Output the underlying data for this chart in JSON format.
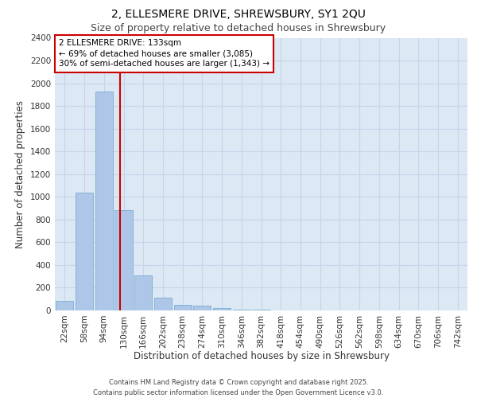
{
  "title_line1": "2, ELLESMERE DRIVE, SHREWSBURY, SY1 2QU",
  "title_line2": "Size of property relative to detached houses in Shrewsbury",
  "xlabel": "Distribution of detached houses by size in Shrewsbury",
  "ylabel": "Number of detached properties",
  "categories": [
    "22sqm",
    "58sqm",
    "94sqm",
    "130sqm",
    "166sqm",
    "202sqm",
    "238sqm",
    "274sqm",
    "310sqm",
    "346sqm",
    "382sqm",
    "418sqm",
    "454sqm",
    "490sqm",
    "526sqm",
    "562sqm",
    "598sqm",
    "634sqm",
    "670sqm",
    "706sqm",
    "742sqm"
  ],
  "values": [
    85,
    1035,
    1930,
    880,
    310,
    110,
    52,
    42,
    20,
    10,
    10,
    0,
    0,
    0,
    0,
    0,
    0,
    0,
    0,
    0,
    0
  ],
  "bar_color": "#aec6e8",
  "bar_edge_color": "#7aaed0",
  "property_line_x": 2.833,
  "annotation_text": "2 ELLESMERE DRIVE: 133sqm\n← 69% of detached houses are smaller (3,085)\n30% of semi-detached houses are larger (1,343) →",
  "annotation_box_facecolor": "#ffffff",
  "annotation_box_edgecolor": "#cc0000",
  "line_color": "#cc0000",
  "ylim": [
    0,
    2400
  ],
  "yticks": [
    0,
    200,
    400,
    600,
    800,
    1000,
    1200,
    1400,
    1600,
    1800,
    2000,
    2200,
    2400
  ],
  "grid_color": "#c8d4e8",
  "background_color": "#dce8f4",
  "footer_text": "Contains HM Land Registry data © Crown copyright and database right 2025.\nContains public sector information licensed under the Open Government Licence v3.0.",
  "title_fontsize": 10,
  "subtitle_fontsize": 9,
  "axis_label_fontsize": 8.5,
  "tick_fontsize": 7.5,
  "annotation_fontsize": 7.5,
  "footer_fontsize": 6
}
